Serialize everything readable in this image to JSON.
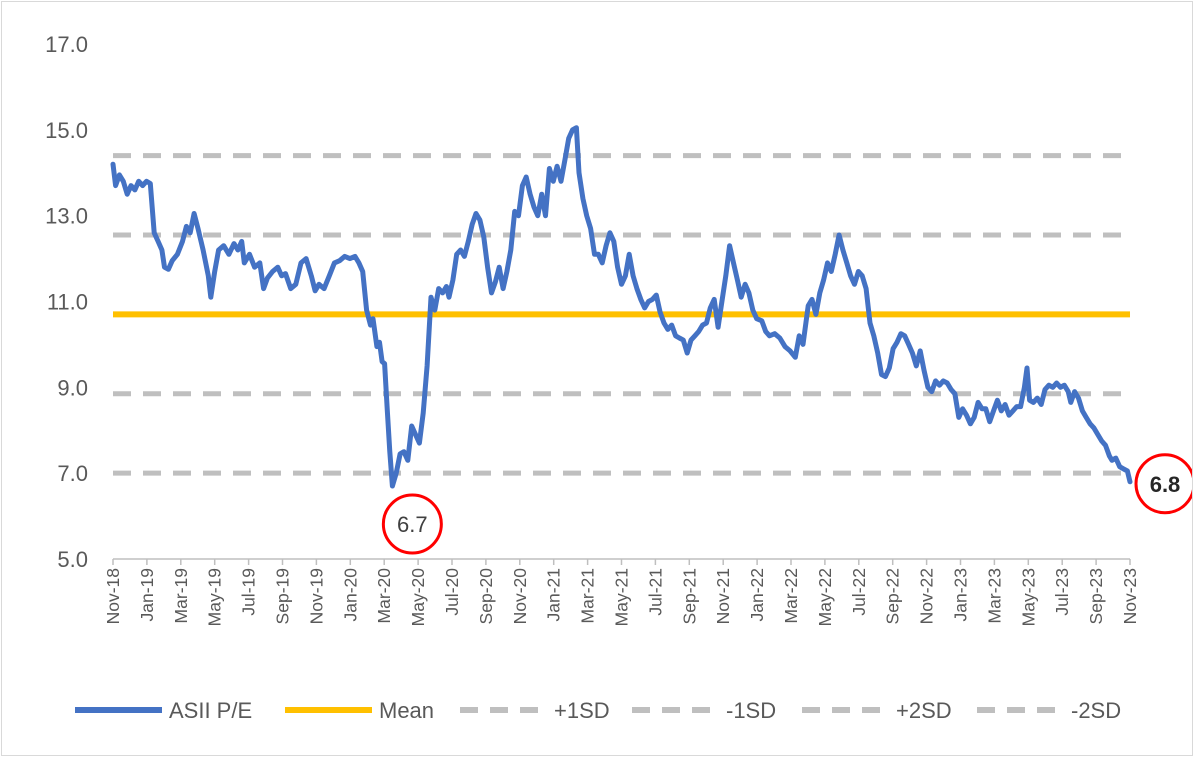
{
  "chart_data": {
    "type": "line",
    "x_ticks": [
      "Nov-18",
      "Jan-19",
      "Mar-19",
      "May-19",
      "Jul-19",
      "Sep-19",
      "Nov-19",
      "Jan-20",
      "Mar-20",
      "May-20",
      "Jul-20",
      "Sep-20",
      "Nov-20",
      "Jan-21",
      "Mar-21",
      "May-21",
      "Jul-21",
      "Sep-21",
      "Nov-21",
      "Jan-22",
      "Mar-22",
      "May-22",
      "Jul-22",
      "Sep-22",
      "Nov-22",
      "Jan-23",
      "Mar-23",
      "May-23",
      "Jul-23",
      "Sep-23",
      "Nov-23"
    ],
    "y_ticks": [
      "17.0",
      "15.0",
      "13.0",
      "11.0",
      "9.0",
      "7.0",
      "5.0"
    ],
    "ylim": [
      5,
      17
    ],
    "legend_position": "bottom",
    "series": [
      {
        "name": "ASII P/E",
        "color": "#4472C4",
        "points": [
          [
            0,
            14.2
          ],
          [
            0.1,
            13.7
          ],
          [
            0.25,
            13.95
          ],
          [
            0.4,
            13.8
          ],
          [
            0.55,
            13.5
          ],
          [
            0.7,
            13.7
          ],
          [
            0.85,
            13.6
          ],
          [
            1.0,
            13.8
          ],
          [
            1.15,
            13.7
          ],
          [
            1.3,
            13.8
          ],
          [
            1.45,
            13.75
          ],
          [
            1.6,
            12.6
          ],
          [
            1.75,
            12.4
          ],
          [
            1.9,
            12.2
          ],
          [
            2.0,
            11.8
          ],
          [
            2.15,
            11.75
          ],
          [
            2.3,
            11.95
          ],
          [
            2.5,
            12.1
          ],
          [
            2.7,
            12.4
          ],
          [
            2.85,
            12.75
          ],
          [
            3.0,
            12.6
          ],
          [
            3.15,
            13.05
          ],
          [
            3.3,
            12.7
          ],
          [
            3.5,
            12.2
          ],
          [
            3.7,
            11.6
          ],
          [
            3.8,
            11.1
          ],
          [
            3.95,
            11.7
          ],
          [
            4.1,
            12.2
          ],
          [
            4.3,
            12.3
          ],
          [
            4.5,
            12.1
          ],
          [
            4.7,
            12.35
          ],
          [
            4.85,
            12.2
          ],
          [
            5.0,
            12.4
          ],
          [
            5.1,
            11.9
          ],
          [
            5.3,
            12.1
          ],
          [
            5.5,
            11.8
          ],
          [
            5.7,
            11.9
          ],
          [
            5.85,
            11.3
          ],
          [
            6.0,
            11.55
          ],
          [
            6.2,
            11.7
          ],
          [
            6.4,
            11.8
          ],
          [
            6.55,
            11.6
          ],
          [
            6.7,
            11.65
          ],
          [
            6.9,
            11.3
          ],
          [
            7.1,
            11.4
          ],
          [
            7.3,
            11.9
          ],
          [
            7.5,
            12.0
          ],
          [
            7.7,
            11.6
          ],
          [
            7.85,
            11.25
          ],
          [
            8.0,
            11.4
          ],
          [
            8.2,
            11.3
          ],
          [
            8.4,
            11.6
          ],
          [
            8.6,
            11.9
          ],
          [
            8.8,
            11.95
          ],
          [
            9.0,
            12.05
          ],
          [
            9.2,
            12.0
          ],
          [
            9.4,
            12.05
          ],
          [
            9.55,
            11.9
          ],
          [
            9.7,
            11.7
          ],
          [
            9.85,
            10.8
          ],
          [
            10.0,
            10.45
          ],
          [
            10.1,
            10.6
          ],
          [
            10.25,
            9.95
          ],
          [
            10.35,
            10.05
          ],
          [
            10.45,
            9.6
          ],
          [
            10.55,
            9.55
          ],
          [
            10.65,
            8.5
          ],
          [
            10.75,
            7.5
          ],
          [
            10.85,
            6.7
          ],
          [
            11.0,
            7.0
          ],
          [
            11.15,
            7.45
          ],
          [
            11.3,
            7.5
          ],
          [
            11.45,
            7.3
          ],
          [
            11.6,
            8.1
          ],
          [
            11.75,
            7.9
          ],
          [
            11.9,
            7.7
          ],
          [
            12.05,
            8.4
          ],
          [
            12.2,
            9.5
          ],
          [
            12.35,
            11.1
          ],
          [
            12.5,
            10.8
          ],
          [
            12.65,
            11.3
          ],
          [
            12.8,
            11.2
          ],
          [
            12.95,
            11.35
          ],
          [
            13.05,
            11.1
          ],
          [
            13.2,
            11.5
          ],
          [
            13.35,
            12.1
          ],
          [
            13.5,
            12.2
          ],
          [
            13.65,
            12.05
          ],
          [
            13.8,
            12.4
          ],
          [
            13.95,
            12.8
          ],
          [
            14.1,
            13.05
          ],
          [
            14.25,
            12.9
          ],
          [
            14.4,
            12.5
          ],
          [
            14.55,
            11.8
          ],
          [
            14.7,
            11.2
          ],
          [
            14.85,
            11.45
          ],
          [
            15.0,
            11.8
          ],
          [
            15.15,
            11.3
          ],
          [
            15.3,
            11.7
          ],
          [
            15.45,
            12.2
          ],
          [
            15.6,
            13.1
          ],
          [
            15.75,
            13.0
          ],
          [
            15.9,
            13.7
          ],
          [
            16.05,
            13.9
          ],
          [
            16.2,
            13.5
          ],
          [
            16.35,
            13.2
          ],
          [
            16.5,
            13.0
          ],
          [
            16.65,
            13.5
          ],
          [
            16.8,
            13.0
          ],
          [
            16.95,
            14.1
          ],
          [
            17.1,
            13.8
          ],
          [
            17.25,
            14.15
          ],
          [
            17.4,
            13.8
          ],
          [
            17.55,
            14.3
          ],
          [
            17.7,
            14.8
          ],
          [
            17.85,
            15.0
          ],
          [
            18.0,
            15.05
          ],
          [
            18.1,
            14.0
          ],
          [
            18.25,
            13.4
          ],
          [
            18.4,
            13.0
          ],
          [
            18.55,
            12.7
          ],
          [
            18.7,
            12.1
          ],
          [
            18.85,
            12.1
          ],
          [
            19.0,
            11.9
          ],
          [
            19.15,
            12.3
          ],
          [
            19.3,
            12.6
          ],
          [
            19.45,
            12.4
          ],
          [
            19.6,
            11.8
          ],
          [
            19.75,
            11.4
          ],
          [
            19.9,
            11.6
          ],
          [
            20.05,
            12.1
          ],
          [
            20.2,
            11.6
          ],
          [
            20.35,
            11.3
          ],
          [
            20.5,
            11.05
          ],
          [
            20.65,
            10.85
          ],
          [
            20.8,
            11.0
          ],
          [
            20.95,
            11.05
          ],
          [
            21.1,
            11.15
          ],
          [
            21.25,
            10.75
          ],
          [
            21.4,
            10.5
          ],
          [
            21.55,
            10.35
          ],
          [
            21.7,
            10.45
          ],
          [
            21.85,
            10.2
          ],
          [
            22.0,
            10.15
          ],
          [
            22.15,
            10.1
          ],
          [
            22.3,
            9.8
          ],
          [
            22.45,
            10.1
          ],
          [
            22.6,
            10.2
          ],
          [
            22.75,
            10.3
          ],
          [
            22.9,
            10.45
          ],
          [
            23.05,
            10.5
          ],
          [
            23.2,
            10.85
          ],
          [
            23.35,
            11.05
          ],
          [
            23.5,
            10.4
          ],
          [
            23.65,
            11.0
          ],
          [
            23.8,
            11.6
          ],
          [
            23.95,
            12.3
          ],
          [
            24.1,
            11.9
          ],
          [
            24.25,
            11.5
          ],
          [
            24.4,
            11.1
          ],
          [
            24.55,
            11.4
          ],
          [
            24.7,
            11.2
          ],
          [
            24.85,
            10.8
          ],
          [
            25.0,
            10.6
          ],
          [
            25.2,
            10.55
          ],
          [
            25.35,
            10.3
          ],
          [
            25.5,
            10.2
          ],
          [
            25.7,
            10.25
          ],
          [
            25.9,
            10.15
          ],
          [
            26.1,
            9.95
          ],
          [
            26.3,
            9.85
          ],
          [
            26.5,
            9.7
          ],
          [
            26.65,
            10.2
          ],
          [
            26.8,
            10.0
          ],
          [
            27.0,
            10.9
          ],
          [
            27.15,
            11.05
          ],
          [
            27.3,
            10.7
          ],
          [
            27.45,
            11.2
          ],
          [
            27.6,
            11.5
          ],
          [
            27.75,
            11.9
          ],
          [
            27.9,
            11.7
          ],
          [
            28.05,
            12.1
          ],
          [
            28.2,
            12.55
          ],
          [
            28.35,
            12.2
          ],
          [
            28.5,
            11.9
          ],
          [
            28.65,
            11.6
          ],
          [
            28.8,
            11.4
          ],
          [
            28.95,
            11.7
          ],
          [
            29.1,
            11.6
          ],
          [
            29.25,
            11.3
          ],
          [
            29.4,
            10.5
          ],
          [
            29.55,
            10.2
          ],
          [
            29.7,
            9.8
          ],
          [
            29.85,
            9.3
          ],
          [
            30.0,
            9.25
          ],
          [
            30.15,
            9.45
          ],
          [
            30.3,
            9.9
          ],
          [
            30.45,
            10.05
          ],
          [
            30.6,
            10.25
          ],
          [
            30.75,
            10.2
          ],
          [
            30.9,
            10.0
          ],
          [
            31.05,
            9.8
          ],
          [
            31.2,
            9.5
          ],
          [
            31.35,
            9.85
          ],
          [
            31.5,
            9.4
          ],
          [
            31.65,
            9.0
          ],
          [
            31.8,
            8.9
          ],
          [
            31.95,
            9.15
          ],
          [
            32.1,
            9.05
          ],
          [
            32.25,
            9.15
          ],
          [
            32.4,
            9.1
          ],
          [
            32.55,
            8.95
          ],
          [
            32.7,
            8.85
          ],
          [
            32.85,
            8.3
          ],
          [
            33.0,
            8.5
          ],
          [
            33.15,
            8.35
          ],
          [
            33.3,
            8.15
          ],
          [
            33.45,
            8.3
          ],
          [
            33.6,
            8.65
          ],
          [
            33.75,
            8.5
          ],
          [
            33.9,
            8.5
          ],
          [
            34.05,
            8.2
          ],
          [
            34.2,
            8.45
          ],
          [
            34.35,
            8.7
          ],
          [
            34.5,
            8.45
          ],
          [
            34.65,
            8.6
          ],
          [
            34.8,
            8.35
          ],
          [
            34.95,
            8.45
          ],
          [
            35.1,
            8.55
          ],
          [
            35.25,
            8.55
          ],
          [
            35.4,
            9.0
          ],
          [
            35.5,
            9.45
          ],
          [
            35.6,
            8.7
          ],
          [
            35.75,
            8.65
          ],
          [
            35.9,
            8.75
          ],
          [
            36.05,
            8.6
          ],
          [
            36.2,
            8.95
          ],
          [
            36.35,
            9.05
          ],
          [
            36.5,
            9.0
          ],
          [
            36.65,
            9.1
          ],
          [
            36.8,
            9.0
          ],
          [
            36.95,
            9.05
          ],
          [
            37.1,
            8.9
          ],
          [
            37.2,
            8.65
          ],
          [
            37.35,
            8.9
          ],
          [
            37.5,
            8.75
          ],
          [
            37.65,
            8.45
          ],
          [
            37.8,
            8.3
          ],
          [
            37.95,
            8.15
          ],
          [
            38.1,
            8.05
          ],
          [
            38.25,
            7.9
          ],
          [
            38.4,
            7.75
          ],
          [
            38.55,
            7.65
          ],
          [
            38.7,
            7.4
          ],
          [
            38.8,
            7.3
          ],
          [
            38.95,
            7.35
          ],
          [
            39.1,
            7.15
          ],
          [
            39.25,
            7.1
          ],
          [
            39.4,
            7.05
          ],
          [
            39.5,
            6.8
          ]
        ]
      },
      {
        "name": "Mean",
        "color": "#FFC000",
        "value": 10.7
      },
      {
        "name": "+1SD",
        "color": "#BFBFBF",
        "value": 12.55
      },
      {
        "name": "-1SD",
        "color": "#BFBFBF",
        "value": 8.85
      },
      {
        "name": "+2SD",
        "color": "#BFBFBF",
        "value": 14.4
      },
      {
        "name": "-2SD",
        "color": "#BFBFBF",
        "value": 7.0
      }
    ],
    "annotations": [
      {
        "label": "6.7",
        "x": 10.85,
        "y": 6.7,
        "bold": false,
        "color": "#FF0000"
      },
      {
        "label": "6.8",
        "x": 39.5,
        "y": 6.8,
        "bold": true,
        "color": "#FF0000"
      }
    ],
    "legend": [
      "ASII P/E",
      "Mean",
      "+1SD",
      "-1SD",
      "+2SD",
      "-2SD"
    ]
  }
}
